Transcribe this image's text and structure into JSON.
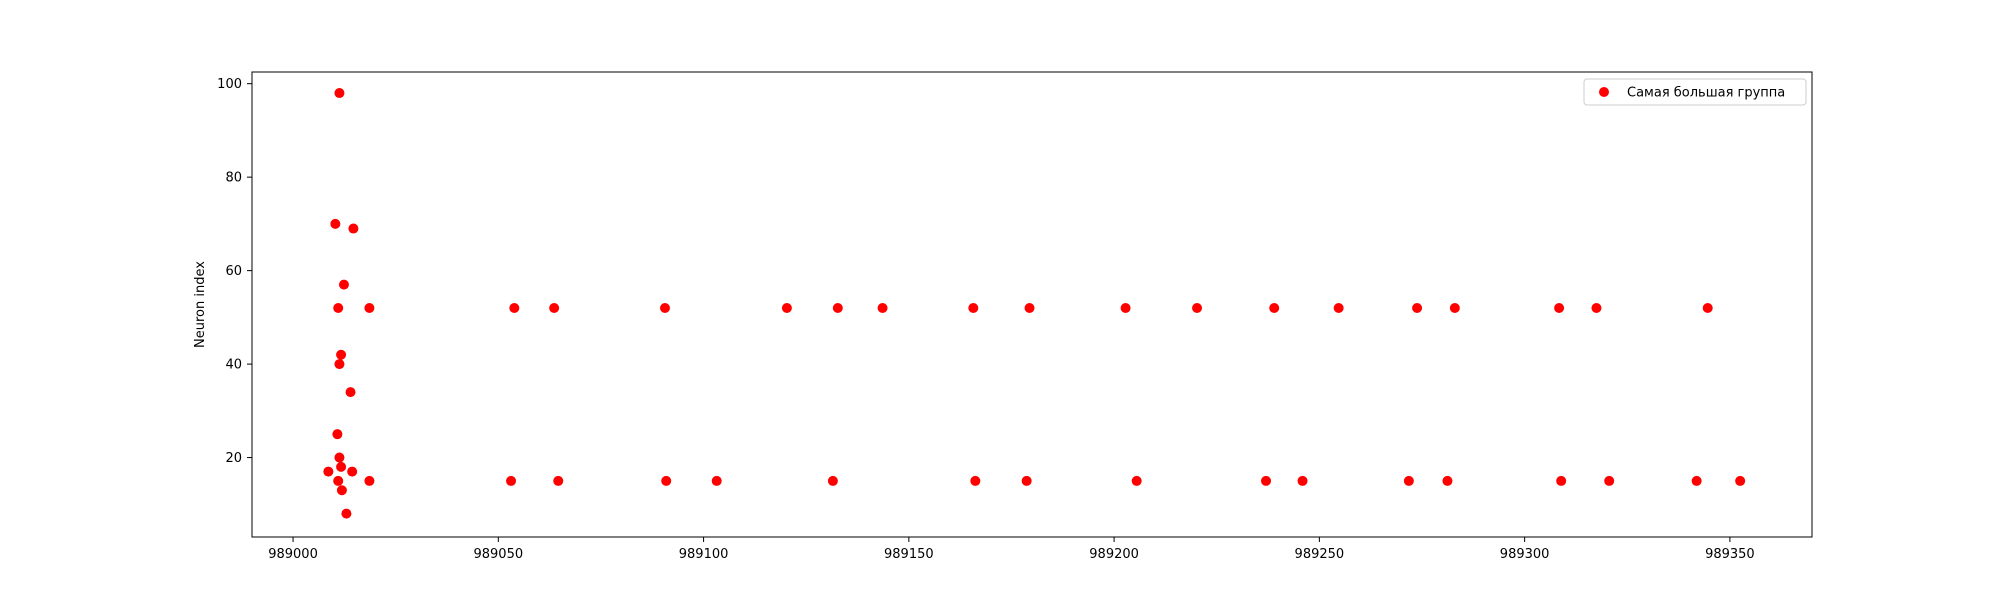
{
  "chart_data": {
    "type": "scatter",
    "title": "",
    "xlabel": "",
    "ylabel": "Neuron index",
    "xlim": [
      988990,
      989370
    ],
    "ylim": [
      3,
      102.5
    ],
    "xticks": [
      989000,
      989050,
      989100,
      989150,
      989200,
      989250,
      989300,
      989350
    ],
    "yticks": [
      20,
      40,
      60,
      80,
      100
    ],
    "grid": false,
    "legend_position": "top-right",
    "series": [
      {
        "name": "Самая большая группа",
        "color": "#ff0000",
        "points": [
          [
            989011.3,
            98
          ],
          [
            989010.3,
            70
          ],
          [
            989014.7,
            69
          ],
          [
            989012.4,
            57
          ],
          [
            989011.0,
            52
          ],
          [
            989018.6,
            52
          ],
          [
            989011.7,
            42
          ],
          [
            989011.3,
            40
          ],
          [
            989014.0,
            34
          ],
          [
            989010.8,
            25
          ],
          [
            989011.3,
            20
          ],
          [
            989011.7,
            18
          ],
          [
            989008.6,
            17
          ],
          [
            989014.4,
            17
          ],
          [
            989011.0,
            15
          ],
          [
            989018.6,
            15
          ],
          [
            989011.9,
            13
          ],
          [
            989013.0,
            8
          ],
          [
            989053.9,
            52
          ],
          [
            989063.6,
            52
          ],
          [
            989090.6,
            52
          ],
          [
            989120.3,
            52
          ],
          [
            989132.7,
            52
          ],
          [
            989143.6,
            52
          ],
          [
            989165.7,
            52
          ],
          [
            989179.4,
            52
          ],
          [
            989202.8,
            52
          ],
          [
            989220.2,
            52
          ],
          [
            989239.0,
            52
          ],
          [
            989254.7,
            52
          ],
          [
            989273.8,
            52
          ],
          [
            989283.0,
            52
          ],
          [
            989308.4,
            52
          ],
          [
            989317.5,
            52
          ],
          [
            989344.6,
            52
          ],
          [
            989053.1,
            15
          ],
          [
            989064.6,
            15
          ],
          [
            989090.9,
            15
          ],
          [
            989103.2,
            15
          ],
          [
            989131.5,
            15
          ],
          [
            989166.2,
            15
          ],
          [
            989178.7,
            15
          ],
          [
            989205.5,
            15
          ],
          [
            989237.0,
            15
          ],
          [
            989245.9,
            15
          ],
          [
            989271.8,
            15
          ],
          [
            989281.2,
            15
          ],
          [
            989308.9,
            15
          ],
          [
            989320.6,
            15
          ],
          [
            989341.9,
            15
          ],
          [
            989352.5,
            15
          ]
        ]
      }
    ]
  }
}
